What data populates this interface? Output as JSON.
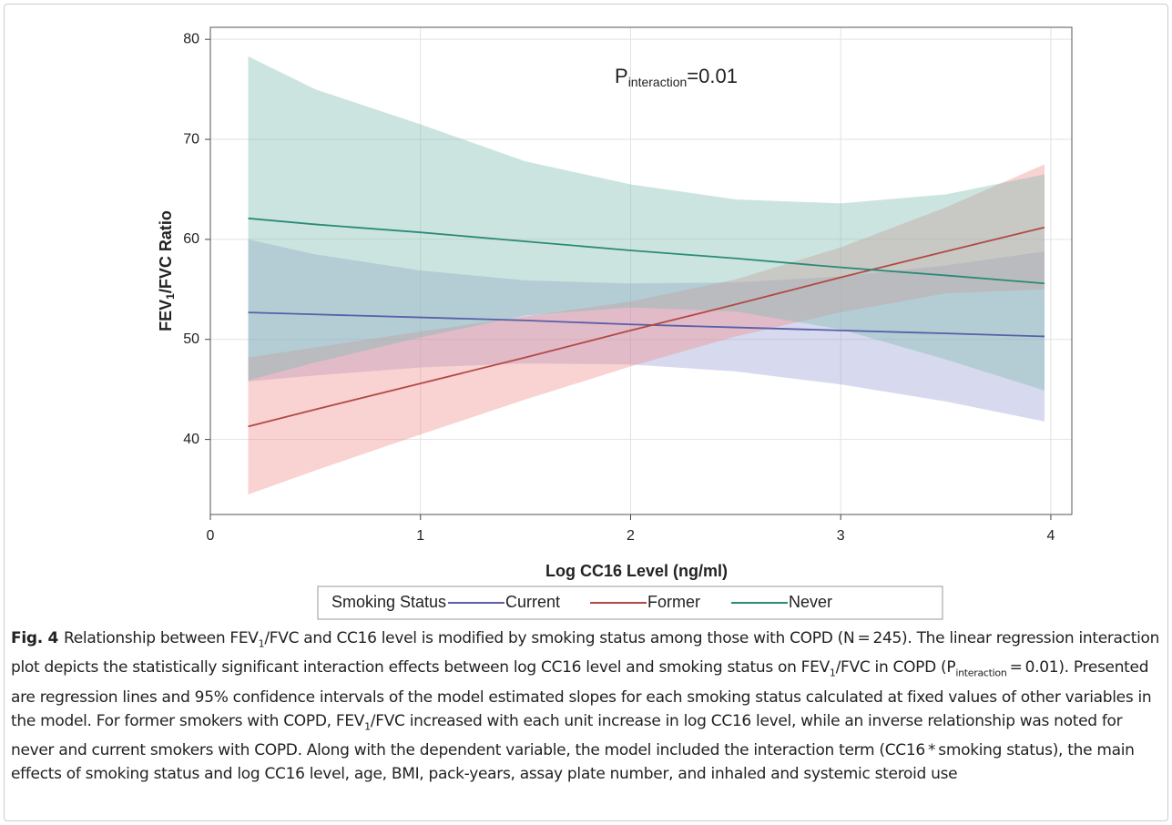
{
  "chart_data": {
    "type": "line",
    "annotation": {
      "text": "P",
      "subscript": "interaction",
      "rest": "=0.01"
    },
    "y_label": {
      "text": "FEV",
      "subscript": "1",
      "rest": "/FVC Ratio"
    },
    "x_label": "Log CC16 Level (ng/ml)",
    "legend_title": "Smoking Status",
    "x": [
      0.18,
      0.5,
      1,
      1.5,
      2,
      2.5,
      3,
      3.5,
      3.97
    ],
    "series": [
      {
        "name": "Current",
        "color": "#5a5fa8",
        "band_color": "#9aa0d8",
        "values": [
          52.7,
          52.5,
          52.2,
          51.9,
          51.5,
          51.2,
          50.9,
          50.6,
          50.3
        ],
        "upper": [
          60,
          58.5,
          56.9,
          55.9,
          55.6,
          55.7,
          56.3,
          57.4,
          58.8
        ],
        "lower": [
          45.8,
          46.4,
          47.2,
          47.6,
          47.5,
          46.8,
          45.5,
          43.8,
          41.8
        ]
      },
      {
        "name": "Former",
        "color": "#b24a44",
        "band_color": "#ef8f8f",
        "values": [
          41.3,
          43.0,
          45.6,
          48.2,
          50.9,
          53.5,
          56.2,
          58.8,
          61.2
        ],
        "upper": [
          48.2,
          49.2,
          50.8,
          52.3,
          53.8,
          56.0,
          59.2,
          63.2,
          67.5
        ],
        "lower": [
          34.5,
          36.9,
          40.5,
          44.0,
          47.3,
          50.3,
          52.7,
          54.6,
          55.0
        ]
      },
      {
        "name": "Never",
        "color": "#2b8a78",
        "band_color": "#7fbcae",
        "values": [
          62.1,
          61.5,
          60.7,
          59.8,
          58.9,
          58.1,
          57.2,
          56.4,
          55.6
        ],
        "upper": [
          78.3,
          75.0,
          71.5,
          67.8,
          65.5,
          64.0,
          63.6,
          64.5,
          66.5
        ],
        "lower": [
          45.9,
          47.7,
          50.2,
          52.4,
          53.2,
          52.8,
          51.0,
          48.0,
          44.9
        ]
      }
    ],
    "xlim": [
      0,
      4.1
    ],
    "ylim": [
      32.5,
      81.2
    ],
    "xticks": [
      0,
      1,
      2,
      3,
      4
    ],
    "yticks": [
      40,
      50,
      60,
      70,
      80
    ],
    "grid": true,
    "caption": {
      "label": "Fig. 4",
      "parts": [
        {
          "text": "Relationship between FEV"
        },
        {
          "text": "1",
          "sub": true
        },
        {
          "text": "/FVC and CC16 level is modified by smoking status among those with COPD (N = 245). The linear regression interaction plot depicts the statistically significant interaction effects between log CC16 level and smoking status on FEV"
        },
        {
          "text": "1",
          "sub": true
        },
        {
          "text": "/FVC in COPD (P"
        },
        {
          "text": "interaction",
          "sub": true
        },
        {
          "text": " = 0.01). Presented are regression lines and 95% confidence intervals of the model estimated slopes for each smoking status calculated at fixed values of other variables in the model. For former smokers with COPD, FEV"
        },
        {
          "text": "1",
          "sub": true
        },
        {
          "text": "/FVC increased with each unit increase in log CC16 level, while an inverse relationship was noted for never and current smokers with COPD. Along with the dependent variable, the model included the interaction term (CC16 * smoking status), the main effects of smoking status and log CC16 level, age, BMI, pack-years, assay plate number, and inhaled and systemic steroid use"
        }
      ]
    }
  }
}
